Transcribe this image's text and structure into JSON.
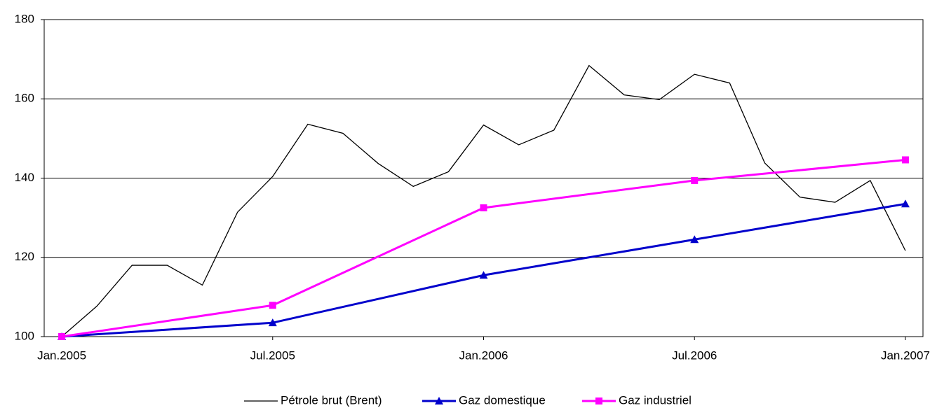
{
  "chart_data": {
    "type": "line",
    "categories": [
      "Jan.2005",
      null,
      null,
      null,
      null,
      null,
      "Jul.2005",
      null,
      null,
      null,
      null,
      null,
      "Jan.2006",
      null,
      null,
      null,
      null,
      null,
      "Jul.2006",
      null,
      null,
      null,
      null,
      null,
      "Jan.2007"
    ],
    "ylim": [
      100,
      180
    ],
    "yticks": [
      100,
      120,
      140,
      160,
      180
    ],
    "grid": true,
    "legend": "bottom",
    "series": [
      {
        "name": "Pétrole brut (Brent)",
        "color": "#000000",
        "marker": "none",
        "values": [
          100,
          107.7,
          118,
          118,
          113,
          131.4,
          140.4,
          153.6,
          151.3,
          143.7,
          137.9,
          141.6,
          153.4,
          148.4,
          152.1,
          168.4,
          161,
          159.8,
          166.2,
          164,
          143.8,
          135.2,
          133.9,
          139.4,
          121.7
        ]
      },
      {
        "name": "Gaz domestique",
        "color": "#0000cc",
        "marker": "triangle",
        "x": [
          "Jan.2005",
          "Jul.2005",
          "Jan.2006",
          "Jul.2006",
          "Jan.2007"
        ],
        "values": [
          100,
          103.5,
          115.5,
          124.5,
          133.5
        ]
      },
      {
        "name": "Gaz industriel",
        "color": "#ff00ff",
        "marker": "square",
        "x": [
          "Jan.2005",
          "Jul.2005",
          "Jan.2006",
          "Jul.2006",
          "Jan.2007"
        ],
        "values": [
          100,
          107.9,
          132.5,
          139.4,
          144.6
        ]
      }
    ]
  }
}
